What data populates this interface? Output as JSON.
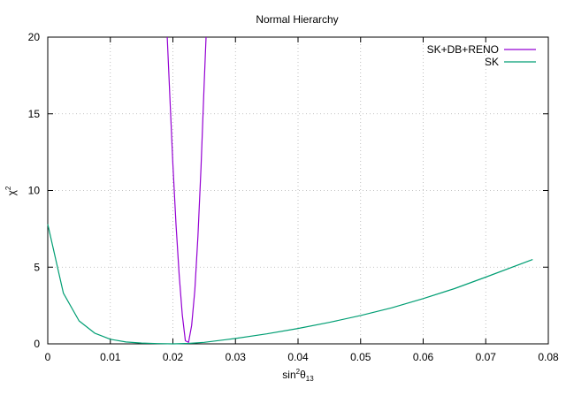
{
  "chart_data": {
    "type": "line",
    "title": "Normal Hierarchy",
    "xlabel": {
      "base": "sin",
      "sup": "2",
      "theta": "θ",
      "sub": "13"
    },
    "ylabel": {
      "base": "χ",
      "sup": "2"
    },
    "xlim": [
      0,
      0.08
    ],
    "ylim": [
      0,
      20
    ],
    "xticks": [
      0,
      0.01,
      0.02,
      0.03,
      0.04,
      0.05,
      0.06,
      0.07,
      0.08
    ],
    "xtick_labels": [
      "0",
      "0.01",
      "0.02",
      "0.03",
      "0.04",
      "0.05",
      "0.06",
      "0.07",
      "0.08"
    ],
    "yticks": [
      0,
      5,
      10,
      15,
      20
    ],
    "ytick_labels": [
      "0",
      "5",
      "10",
      "15",
      "20"
    ],
    "grid": true,
    "legend_position": "top-right",
    "series": [
      {
        "name": "SK+DB+RENO",
        "color": "#9400d3",
        "x": [
          0.0191,
          0.0195,
          0.02,
          0.0205,
          0.021,
          0.0215,
          0.022,
          0.0225,
          0.023,
          0.0235,
          0.024,
          0.0245,
          0.025,
          0.0253
        ],
        "y": [
          20.0,
          16.2,
          11.7,
          7.8,
          4.5,
          1.9,
          0.2,
          0.1,
          1.2,
          3.5,
          7.0,
          11.5,
          17.0,
          20.0
        ]
      },
      {
        "name": "SK",
        "color": "#009e73",
        "x": [
          0.0,
          0.0025,
          0.005,
          0.0075,
          0.01,
          0.0125,
          0.015,
          0.0175,
          0.02,
          0.0225,
          0.025,
          0.03,
          0.035,
          0.04,
          0.045,
          0.05,
          0.055,
          0.06,
          0.065,
          0.07,
          0.0775
        ],
        "y": [
          7.8,
          3.3,
          1.5,
          0.7,
          0.3,
          0.12,
          0.05,
          0.02,
          0.0,
          0.03,
          0.1,
          0.35,
          0.65,
          1.0,
          1.4,
          1.85,
          2.35,
          2.95,
          3.6,
          4.35,
          5.5
        ]
      }
    ]
  }
}
